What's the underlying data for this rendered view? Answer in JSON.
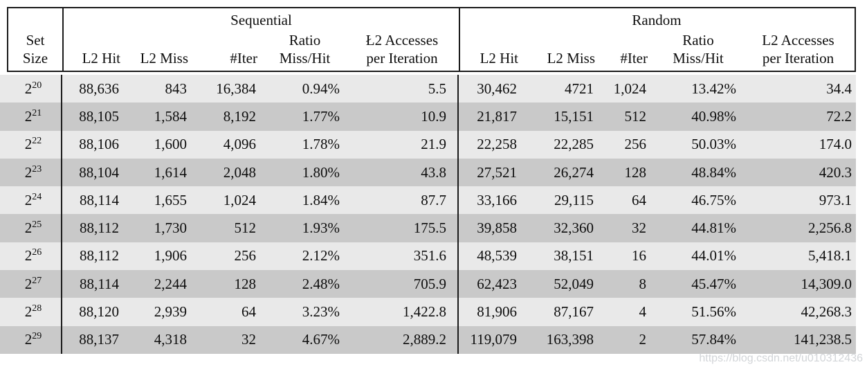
{
  "page": {
    "watermark": "https://blog.csdn.net/u010312436",
    "colors": {
      "row_light": "#e9e9e9",
      "row_dark": "#c9c9c9",
      "border": "#1a1a1a",
      "text": "#0d0d0d",
      "watermark": "#d2d5d8"
    }
  },
  "table": {
    "set_size_header": {
      "line1": "Set",
      "line2": "Size"
    },
    "groups": [
      {
        "title": "Sequential",
        "columns": [
          {
            "lines": [
              "L2 Hit"
            ]
          },
          {
            "lines": [
              "L2 Miss"
            ]
          },
          {
            "lines": [
              "#Iter"
            ]
          },
          {
            "lines": [
              "Ratio",
              "Miss/Hit"
            ]
          },
          {
            "lines": [
              "Ł2 Accesses",
              "per Iteration"
            ]
          }
        ]
      },
      {
        "title": "Random",
        "columns": [
          {
            "lines": [
              "L2 Hit"
            ]
          },
          {
            "lines": [
              "L2 Miss"
            ]
          },
          {
            "lines": [
              "#Iter"
            ]
          },
          {
            "lines": [
              "Ratio",
              "Miss/Hit"
            ]
          },
          {
            "lines": [
              "L2 Accesses",
              "per Iteration"
            ]
          }
        ]
      }
    ],
    "rows": [
      {
        "set_base": "2",
        "set_exp": "20",
        "sequential": [
          "88,636",
          "843",
          "16,384",
          "0.94%",
          "5.5"
        ],
        "random": [
          "30,462",
          "4721",
          "1,024",
          "13.42%",
          "34.4"
        ]
      },
      {
        "set_base": "2",
        "set_exp": "21",
        "sequential": [
          "88,105",
          "1,584",
          "8,192",
          "1.77%",
          "10.9"
        ],
        "random": [
          "21,817",
          "15,151",
          "512",
          "40.98%",
          "72.2"
        ]
      },
      {
        "set_base": "2",
        "set_exp": "22",
        "sequential": [
          "88,106",
          "1,600",
          "4,096",
          "1.78%",
          "21.9"
        ],
        "random": [
          "22,258",
          "22,285",
          "256",
          "50.03%",
          "174.0"
        ]
      },
      {
        "set_base": "2",
        "set_exp": "23",
        "sequential": [
          "88,104",
          "1,614",
          "2,048",
          "1.80%",
          "43.8"
        ],
        "random": [
          "27,521",
          "26,274",
          "128",
          "48.84%",
          "420.3"
        ]
      },
      {
        "set_base": "2",
        "set_exp": "24",
        "sequential": [
          "88,114",
          "1,655",
          "1,024",
          "1.84%",
          "87.7"
        ],
        "random": [
          "33,166",
          "29,115",
          "64",
          "46.75%",
          "973.1"
        ]
      },
      {
        "set_base": "2",
        "set_exp": "25",
        "sequential": [
          "88,112",
          "1,730",
          "512",
          "1.93%",
          "175.5"
        ],
        "random": [
          "39,858",
          "32,360",
          "32",
          "44.81%",
          "2,256.8"
        ]
      },
      {
        "set_base": "2",
        "set_exp": "26",
        "sequential": [
          "88,112",
          "1,906",
          "256",
          "2.12%",
          "351.6"
        ],
        "random": [
          "48,539",
          "38,151",
          "16",
          "44.01%",
          "5,418.1"
        ]
      },
      {
        "set_base": "2",
        "set_exp": "27",
        "sequential": [
          "88,114",
          "2,244",
          "128",
          "2.48%",
          "705.9"
        ],
        "random": [
          "62,423",
          "52,049",
          "8",
          "45.47%",
          "14,309.0"
        ]
      },
      {
        "set_base": "2",
        "set_exp": "28",
        "sequential": [
          "88,120",
          "2,939",
          "64",
          "3.23%",
          "1,422.8"
        ],
        "random": [
          "81,906",
          "87,167",
          "4",
          "51.56%",
          "42,268.3"
        ]
      },
      {
        "set_base": "2",
        "set_exp": "29",
        "sequential": [
          "88,137",
          "4,318",
          "32",
          "4.67%",
          "2,889.2"
        ],
        "random": [
          "119,079",
          "163,398",
          "2",
          "57.84%",
          "141,238.5"
        ]
      }
    ]
  }
}
